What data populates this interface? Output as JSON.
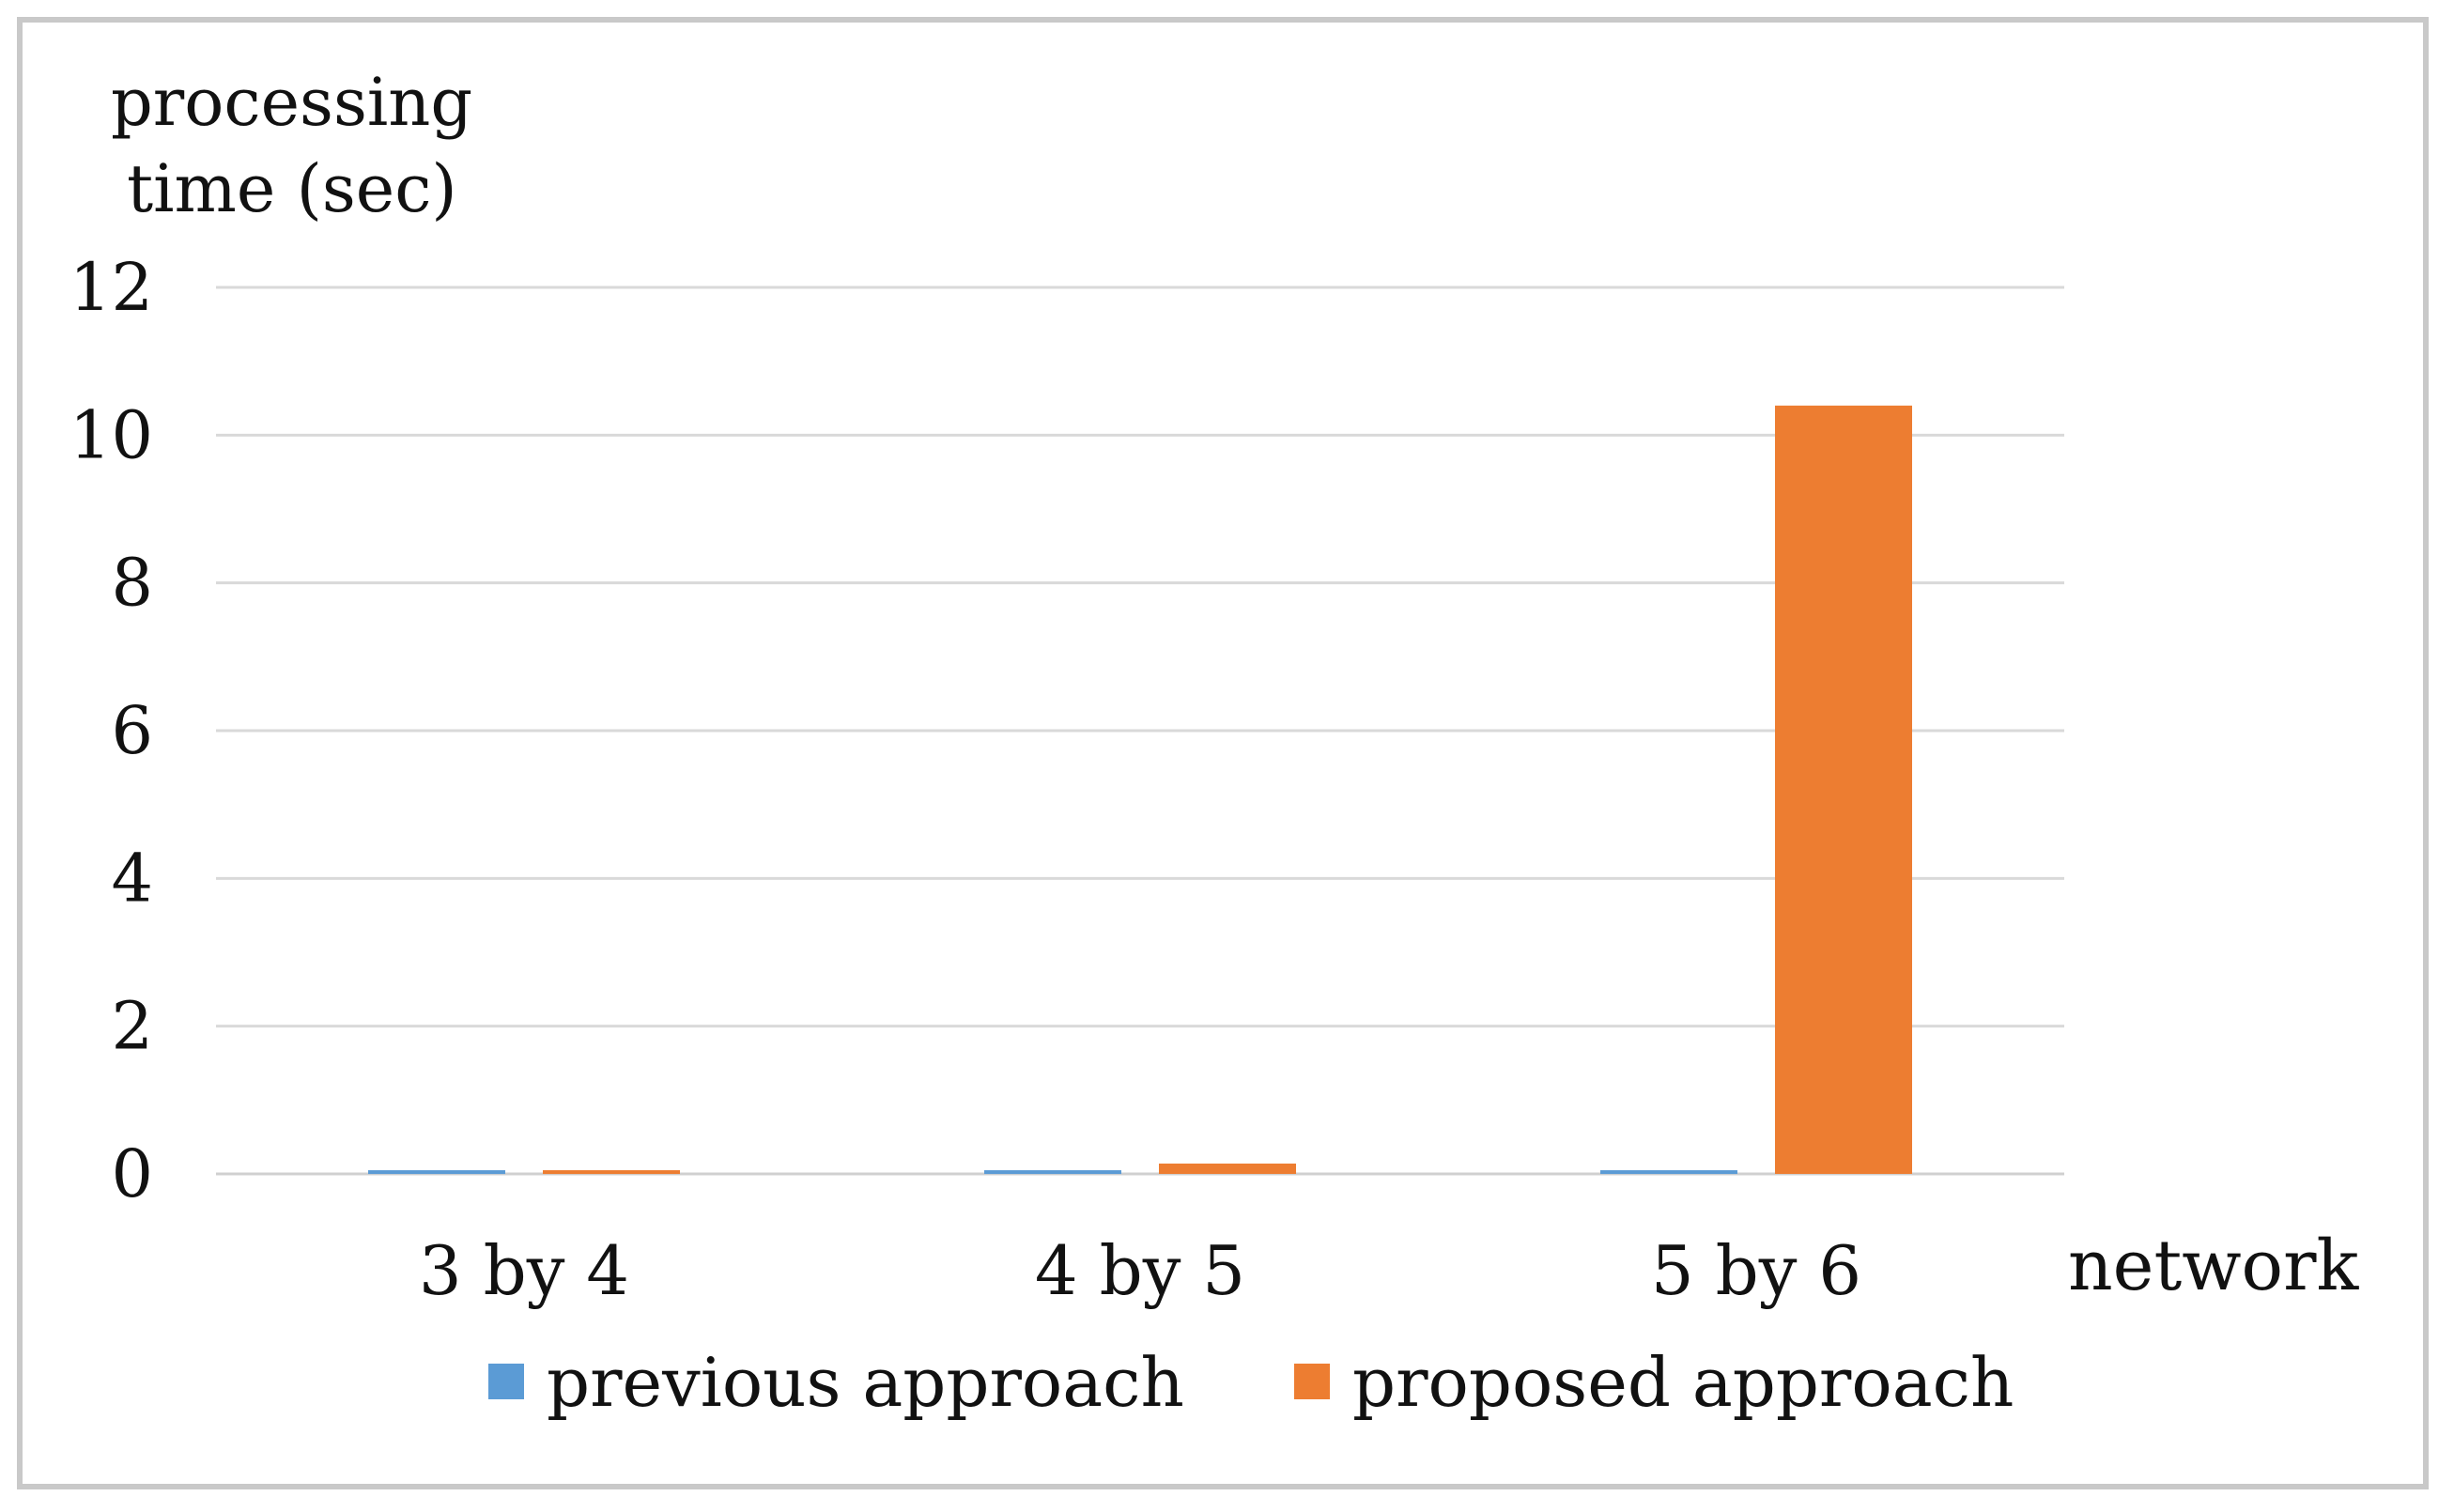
{
  "chart_data": {
    "type": "bar",
    "categories": [
      "3 by 4",
      "4 by 5",
      "5 by 6"
    ],
    "series": [
      {
        "name": "previous approach",
        "values": [
          0.05,
          0.05,
          0.05
        ],
        "color": "#5b9bd5"
      },
      {
        "name": "proposed approach",
        "values": [
          0.05,
          0.14,
          10.4
        ],
        "color": "#ed7d31"
      }
    ],
    "ylabel_lines": [
      "processing",
      "time (sec)"
    ],
    "xlabel": "network",
    "ylim": [
      0,
      12
    ],
    "yticks": [
      0,
      2,
      4,
      6,
      8,
      10,
      12
    ],
    "grid": true,
    "legend_position": "bottom"
  }
}
